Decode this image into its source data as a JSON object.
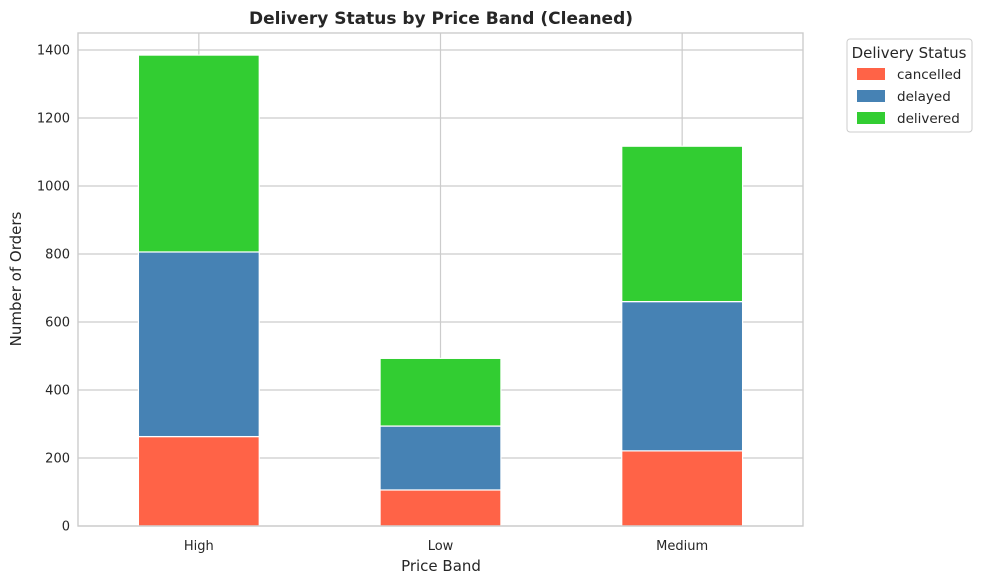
{
  "chart_data": {
    "type": "bar",
    "stacked": true,
    "title": "Delivery Status by Price Band (Cleaned)",
    "xlabel": "Price Band",
    "ylabel": "Number of Orders",
    "categories": [
      "High",
      "Low",
      "Medium"
    ],
    "series": [
      {
        "name": "cancelled",
        "color": "#ff6347",
        "values": [
          263,
          106,
          221
        ]
      },
      {
        "name": "delayed",
        "color": "#4682b4",
        "values": [
          543,
          188,
          439
        ]
      },
      {
        "name": "delivered",
        "color": "#32cd32",
        "values": [
          579,
          199,
          457
        ]
      }
    ],
    "ylim": [
      0,
      1450
    ],
    "yticks": [
      0,
      200,
      400,
      600,
      800,
      1000,
      1200,
      1400
    ],
    "grid": true,
    "legend": {
      "title": "Delivery Status",
      "placement": "outside top-right"
    }
  }
}
